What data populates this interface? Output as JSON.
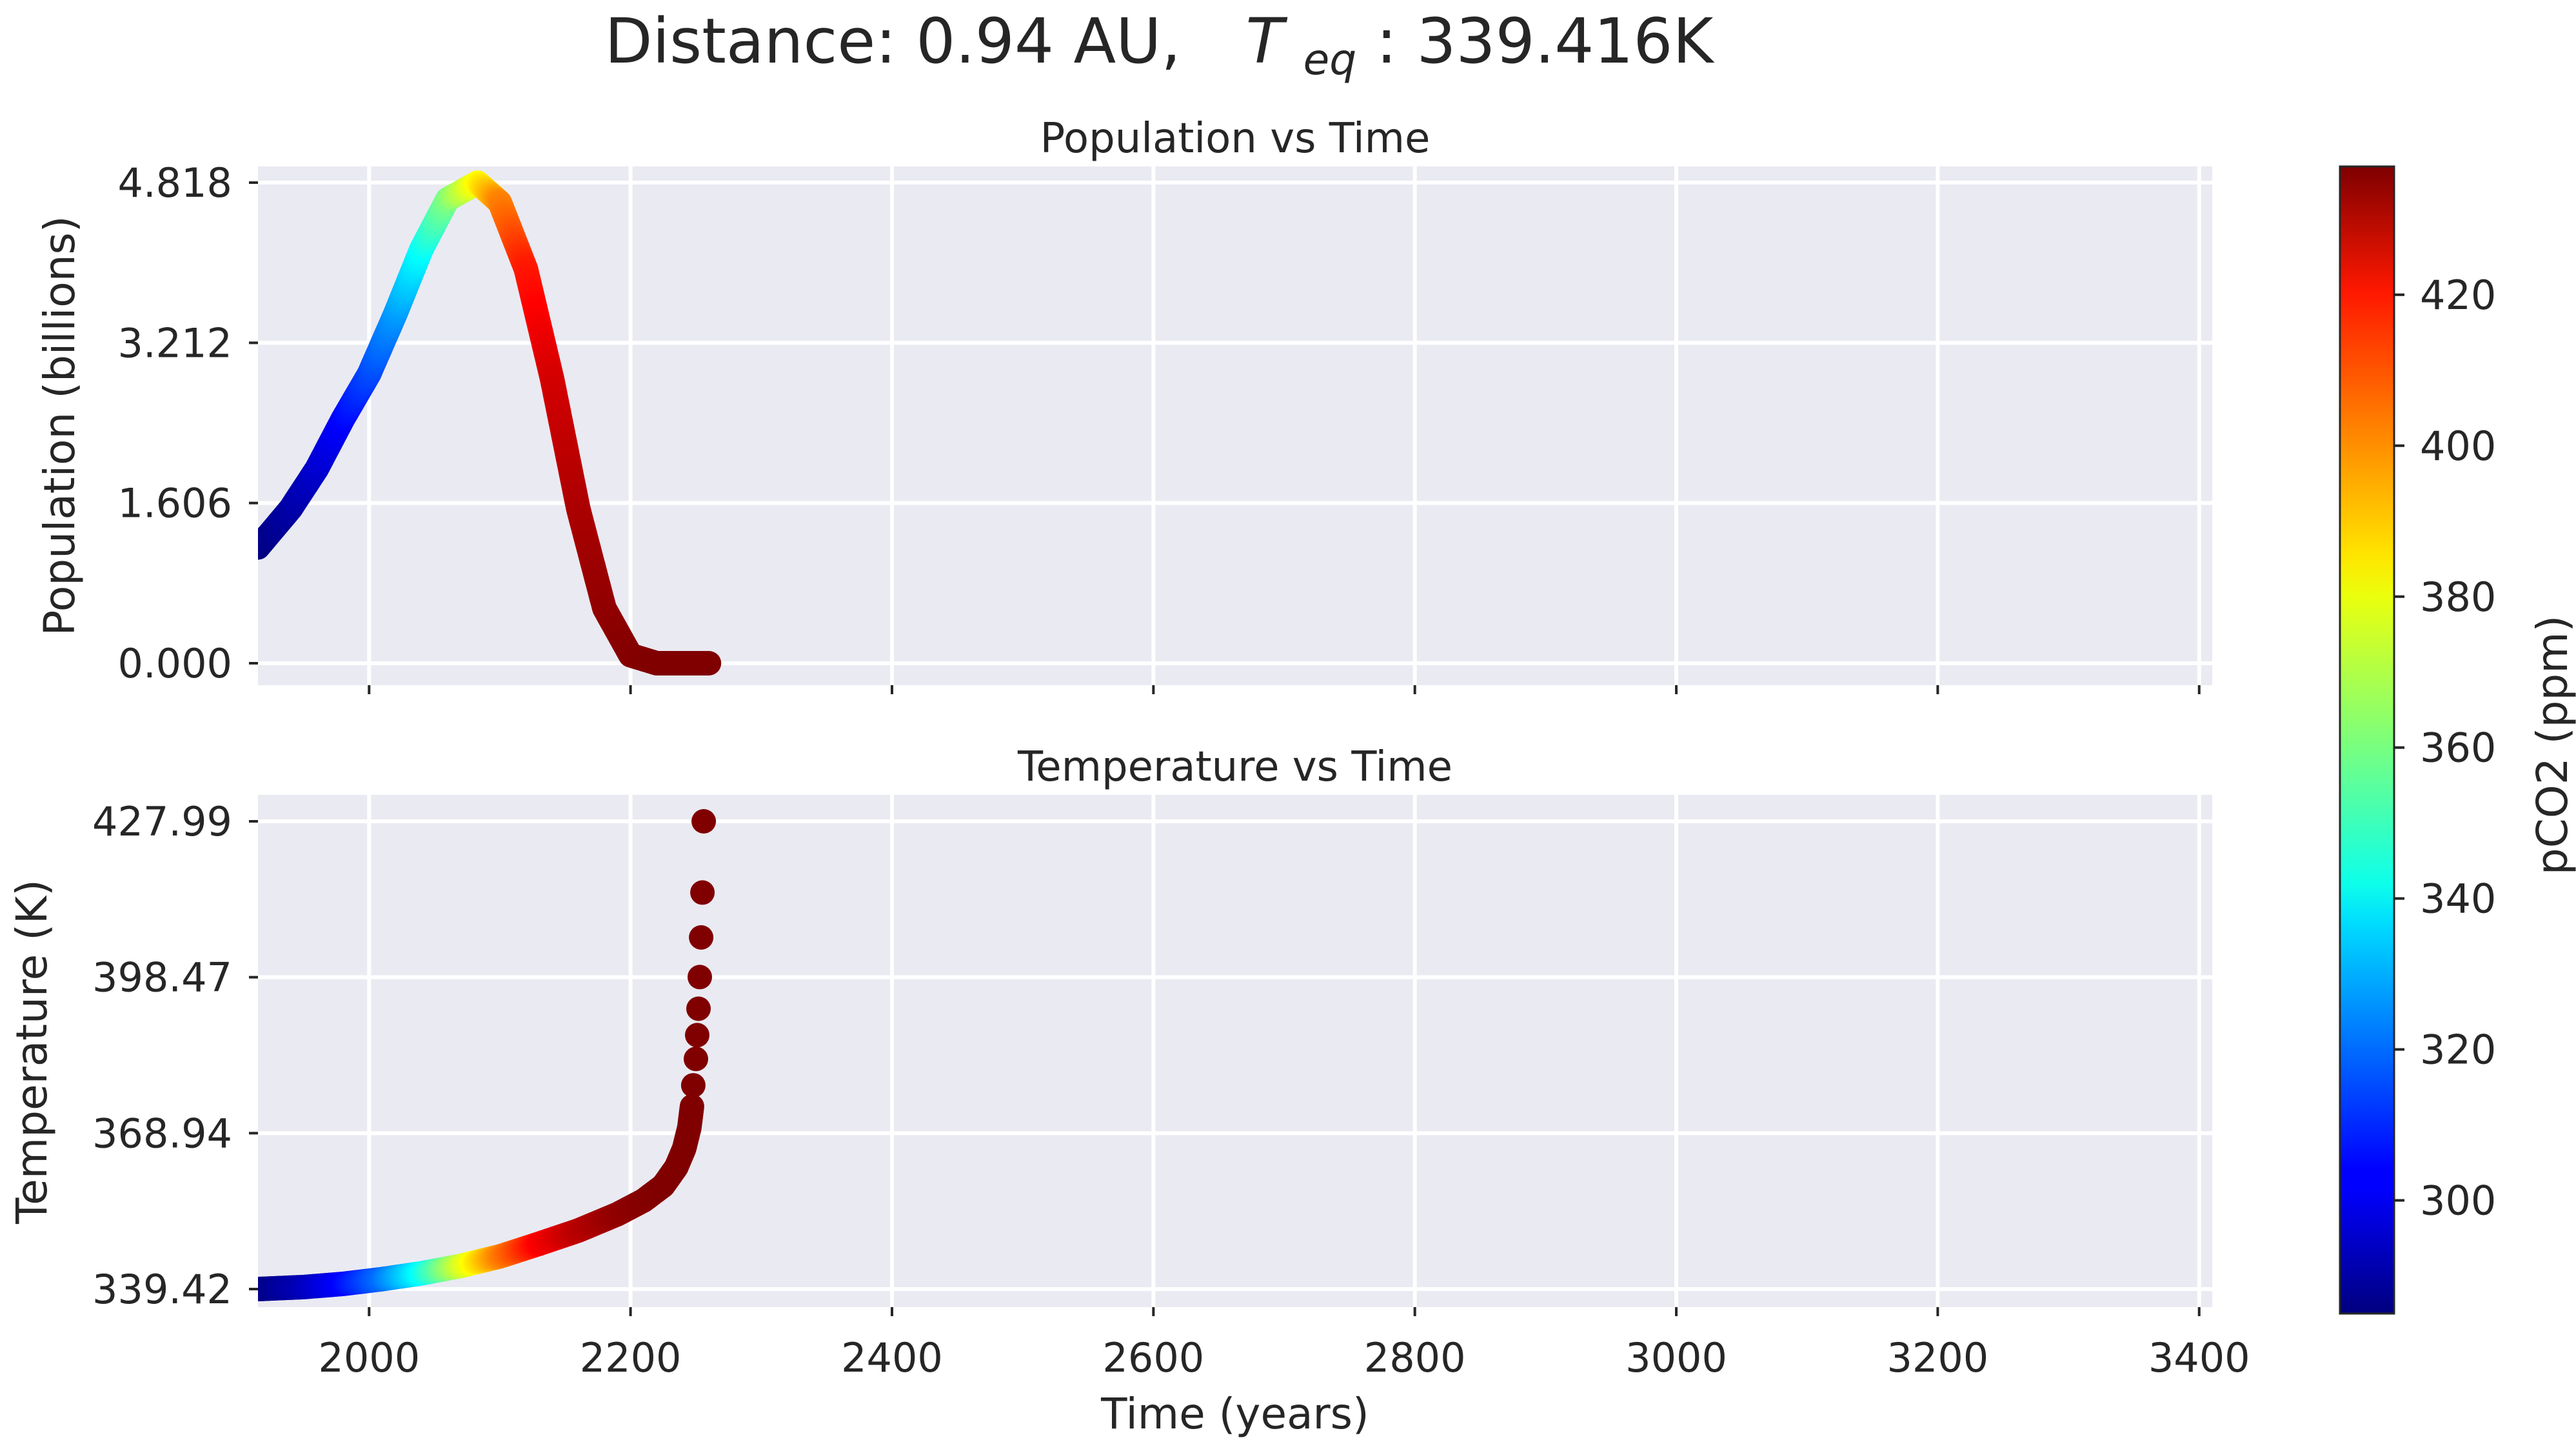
{
  "title": {
    "prefix": "Distance: 0.94 AU,",
    "teq_symbol": "T",
    "teq_subscript": "eq",
    "suffix": ": 339.416K"
  },
  "colorbar": {
    "label": "pCO2 (ppm)",
    "colormap": "jet",
    "range": [
      285,
      437
    ],
    "ticks": [
      300,
      320,
      340,
      360,
      380,
      400,
      420
    ],
    "tick_labels": [
      "300",
      "320",
      "340",
      "360",
      "380",
      "400",
      "420"
    ]
  },
  "chart_data": [
    {
      "type": "scatter",
      "title": "Population vs Time",
      "xlabel": "",
      "ylabel": "Population (billions)",
      "xlim": [
        1915,
        3410
      ],
      "ylim": [
        -0.22,
        4.98
      ],
      "xticks": [
        2000,
        2200,
        2400,
        2600,
        2800,
        3000,
        3200,
        3400
      ],
      "xtick_labels_visible": false,
      "yticks": [
        0.0,
        1.606,
        3.212,
        4.818
      ],
      "ytick_labels": [
        "0.000",
        "1.606",
        "3.212",
        "4.818"
      ],
      "grid": true,
      "color_by": "pCO2 (ppm)",
      "points": [
        {
          "x": 1915,
          "y": 1.16,
          "c": 285
        },
        {
          "x": 1940,
          "y": 1.55,
          "c": 290
        },
        {
          "x": 1960,
          "y": 1.95,
          "c": 296
        },
        {
          "x": 1980,
          "y": 2.45,
          "c": 304
        },
        {
          "x": 2000,
          "y": 2.9,
          "c": 314
        },
        {
          "x": 2020,
          "y": 3.5,
          "c": 326
        },
        {
          "x": 2040,
          "y": 4.15,
          "c": 342
        },
        {
          "x": 2060,
          "y": 4.65,
          "c": 360
        },
        {
          "x": 2083,
          "y": 4.818,
          "c": 380
        },
        {
          "x": 2100,
          "y": 4.62,
          "c": 398
        },
        {
          "x": 2120,
          "y": 3.95,
          "c": 414
        },
        {
          "x": 2140,
          "y": 2.85,
          "c": 424
        },
        {
          "x": 2160,
          "y": 1.55,
          "c": 430
        },
        {
          "x": 2180,
          "y": 0.55,
          "c": 434
        },
        {
          "x": 2200,
          "y": 0.08,
          "c": 436
        },
        {
          "x": 2220,
          "y": 0.0,
          "c": 437
        },
        {
          "x": 2260,
          "y": 0.0,
          "c": 437
        }
      ]
    },
    {
      "type": "scatter",
      "title": "Temperature vs Time",
      "xlabel": "Time (years)",
      "ylabel": "Temperature (K)",
      "xlim": [
        1915,
        3410
      ],
      "ylim": [
        336.0,
        433.0
      ],
      "xticks": [
        2000,
        2200,
        2400,
        2600,
        2800,
        3000,
        3200,
        3400
      ],
      "xtick_labels": [
        "2000",
        "2200",
        "2400",
        "2600",
        "2800",
        "3000",
        "3200",
        "3400"
      ],
      "yticks": [
        339.42,
        368.94,
        398.47,
        427.99
      ],
      "ytick_labels": [
        "339.42",
        "368.94",
        "398.47",
        "427.99"
      ],
      "grid": true,
      "color_by": "pCO2 (ppm)",
      "points": [
        {
          "x": 1915,
          "y": 339.42,
          "c": 285
        },
        {
          "x": 1950,
          "y": 339.8,
          "c": 293
        },
        {
          "x": 1980,
          "y": 340.4,
          "c": 304
        },
        {
          "x": 2010,
          "y": 341.3,
          "c": 320
        },
        {
          "x": 2040,
          "y": 342.4,
          "c": 342
        },
        {
          "x": 2070,
          "y": 343.8,
          "c": 372
        },
        {
          "x": 2100,
          "y": 345.6,
          "c": 398
        },
        {
          "x": 2130,
          "y": 348.0,
          "c": 418
        },
        {
          "x": 2160,
          "y": 350.5,
          "c": 428
        },
        {
          "x": 2190,
          "y": 353.6,
          "c": 434
        },
        {
          "x": 2210,
          "y": 356.2,
          "c": 436
        },
        {
          "x": 2225,
          "y": 359.0,
          "c": 437
        },
        {
          "x": 2235,
          "y": 362.5,
          "c": 437
        },
        {
          "x": 2241,
          "y": 366.0,
          "c": 437
        },
        {
          "x": 2245,
          "y": 370.0,
          "c": 437
        },
        {
          "x": 2247,
          "y": 374.0,
          "c": 437
        },
        {
          "x": 2248,
          "y": 378.0,
          "c": 437
        },
        {
          "x": 2250,
          "y": 383.0,
          "c": 437
        },
        {
          "x": 2251,
          "y": 387.5,
          "c": 437
        },
        {
          "x": 2252,
          "y": 392.5,
          "c": 437
        },
        {
          "x": 2253,
          "y": 398.5,
          "c": 437
        },
        {
          "x": 2254,
          "y": 406.0,
          "c": 437
        },
        {
          "x": 2255,
          "y": 414.5,
          "c": 437
        },
        {
          "x": 2256,
          "y": 427.99,
          "c": 437
        }
      ]
    }
  ]
}
